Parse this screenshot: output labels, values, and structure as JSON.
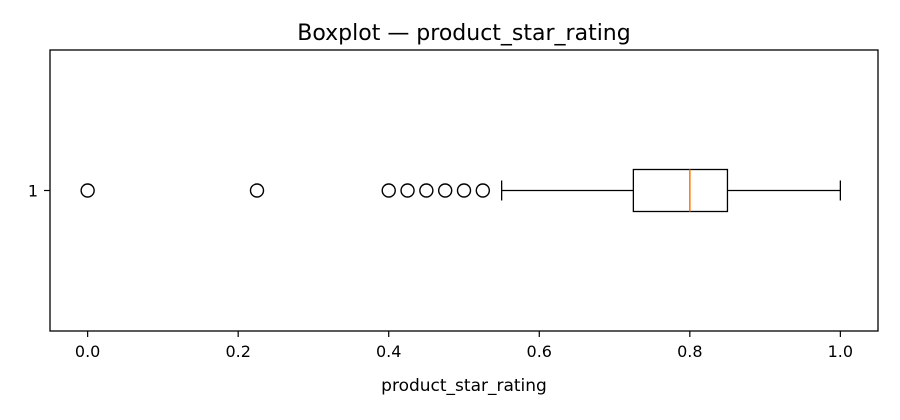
{
  "chart_data": {
    "type": "boxplot",
    "title": "Boxplot — product_star_rating",
    "xlabel": "product_star_rating",
    "ylabel": "",
    "orientation": "horizontal",
    "xlim": [
      -0.05,
      1.05
    ],
    "x_ticks": [
      0.0,
      0.2,
      0.4,
      0.6,
      0.8,
      1.0
    ],
    "x_tick_labels": [
      "0.0",
      "0.2",
      "0.4",
      "0.6",
      "0.8",
      "1.0"
    ],
    "y_tick_labels": [
      "1"
    ],
    "grid": false,
    "colors": {
      "box": "#000000",
      "median": "#ff7f0e",
      "outlier": "#000000"
    },
    "boxes": [
      {
        "label": "1",
        "whisker_low": 0.55,
        "q1": 0.725,
        "median": 0.8,
        "q3": 0.85,
        "whisker_high": 1.0,
        "outliers": [
          0.0,
          0.225,
          0.4,
          0.425,
          0.45,
          0.475,
          0.5,
          0.525
        ]
      }
    ]
  }
}
